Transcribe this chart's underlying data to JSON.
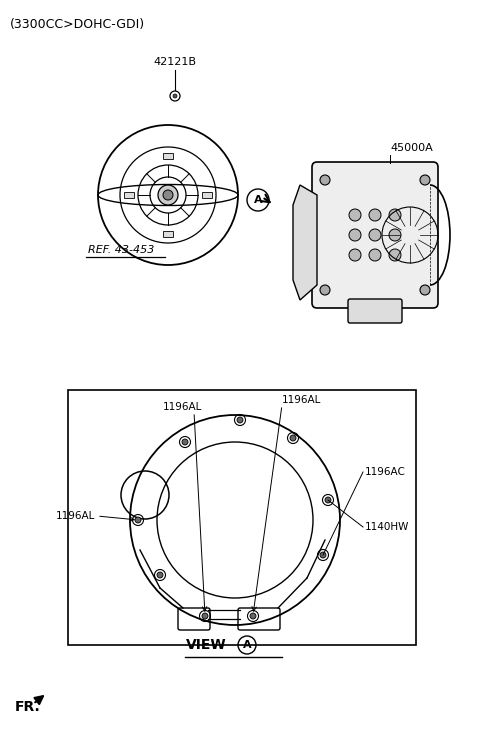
{
  "title_text": "(3300CC>DOHC-GDI)",
  "label_42121B": "42121B",
  "label_45000A": "45000A",
  "label_ref": "REF. 43-453",
  "label_view": "VIEW",
  "label_fr": "FR.",
  "label_1196AL_top_left": "1196AL",
  "label_1196AL_top_right": "1196AL",
  "label_1196AC": "1196AC",
  "label_1196AL_left": "1196AL",
  "label_1140HW": "1140HW",
  "bg_color": "#ffffff",
  "line_color": "#000000",
  "gray_color": "#888888"
}
